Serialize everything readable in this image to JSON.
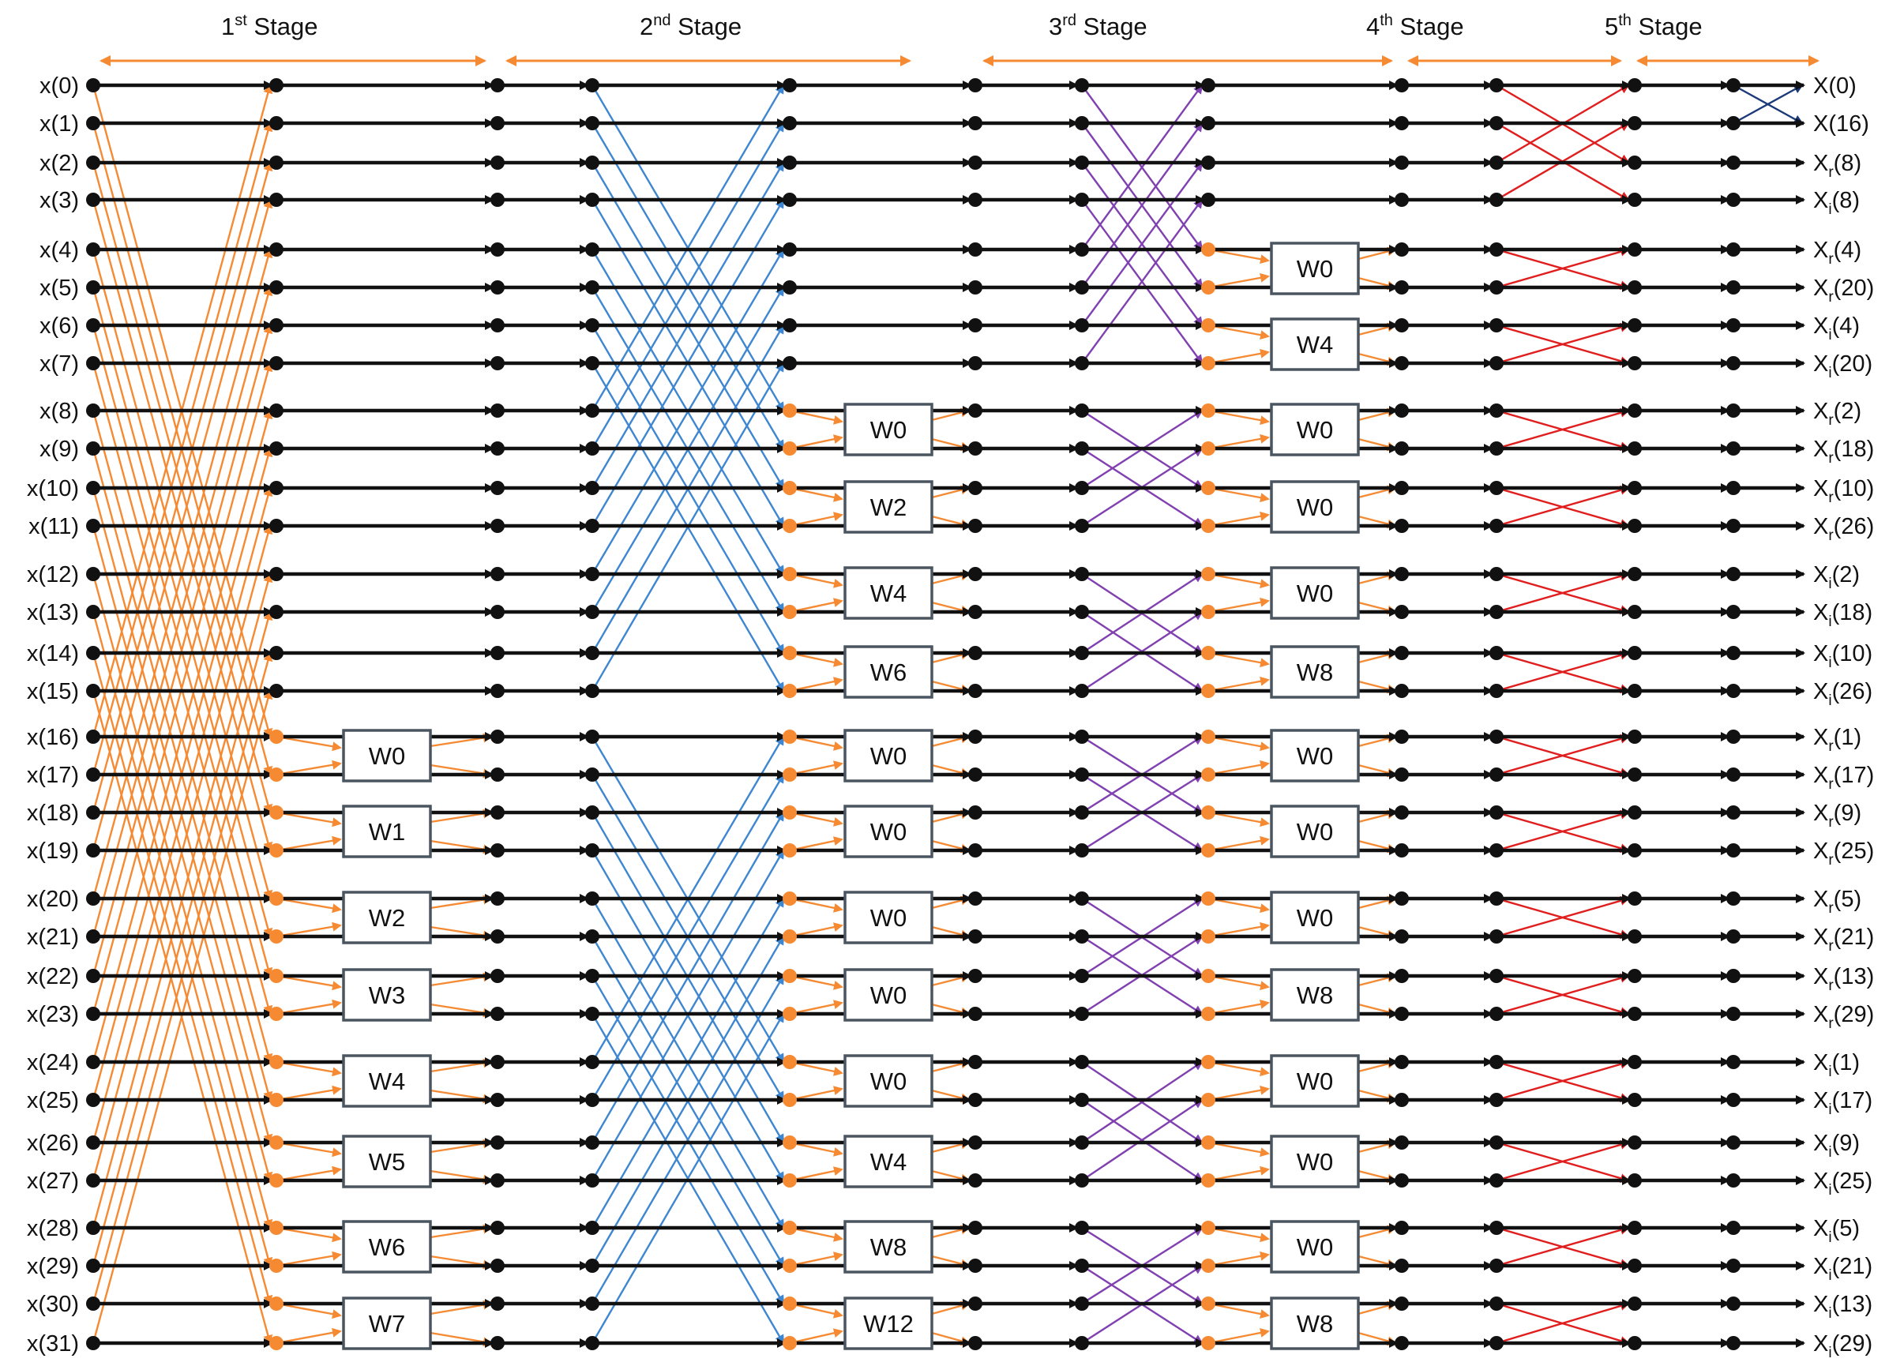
{
  "stages": [
    {
      "base": "1",
      "sup": "st",
      "word": "Stage"
    },
    {
      "base": "2",
      "sup": "nd",
      "word": "Stage"
    },
    {
      "base": "3",
      "sup": "rd",
      "word": "Stage"
    },
    {
      "base": "4",
      "sup": "th",
      "word": "Stage"
    },
    {
      "base": "5",
      "sup": "th",
      "word": "Stage"
    }
  ],
  "inputs": [
    "x(0)",
    "x(1)",
    "x(2)",
    "x(3)",
    "x(4)",
    "x(5)",
    "x(6)",
    "x(7)",
    "x(8)",
    "x(9)",
    "x(10)",
    "x(11)",
    "x(12)",
    "x(13)",
    "x(14)",
    "x(15)",
    "x(16)",
    "x(17)",
    "x(18)",
    "x(19)",
    "x(20)",
    "x(21)",
    "x(22)",
    "x(23)",
    "x(24)",
    "x(25)",
    "x(26)",
    "x(27)",
    "x(28)",
    "x(29)",
    "x(30)",
    "x(31)"
  ],
  "outputs": [
    {
      "base": "X",
      "sub": "",
      "idx": "(0)"
    },
    {
      "base": "X",
      "sub": "",
      "idx": "(16)"
    },
    {
      "base": "X",
      "sub": "r",
      "idx": "(8)"
    },
    {
      "base": "X",
      "sub": "i",
      "idx": "(8)"
    },
    {
      "base": "X",
      "sub": "r",
      "idx": "(4)"
    },
    {
      "base": "X",
      "sub": "r",
      "idx": "(20)"
    },
    {
      "base": "X",
      "sub": "i",
      "idx": "(4)"
    },
    {
      "base": "X",
      "sub": "i",
      "idx": "(20)"
    },
    {
      "base": "X",
      "sub": "r",
      "idx": "(2)"
    },
    {
      "base": "X",
      "sub": "r",
      "idx": "(18)"
    },
    {
      "base": "X",
      "sub": "r",
      "idx": "(10)"
    },
    {
      "base": "X",
      "sub": "r",
      "idx": "(26)"
    },
    {
      "base": "X",
      "sub": "i",
      "idx": "(2)"
    },
    {
      "base": "X",
      "sub": "i",
      "idx": "(18)"
    },
    {
      "base": "X",
      "sub": "i",
      "idx": "(10)"
    },
    {
      "base": "X",
      "sub": "i",
      "idx": "(26)"
    },
    {
      "base": "X",
      "sub": "r",
      "idx": "(1)"
    },
    {
      "base": "X",
      "sub": "r",
      "idx": "(17)"
    },
    {
      "base": "X",
      "sub": "r",
      "idx": "(9)"
    },
    {
      "base": "X",
      "sub": "r",
      "idx": "(25)"
    },
    {
      "base": "X",
      "sub": "r",
      "idx": "(5)"
    },
    {
      "base": "X",
      "sub": "r",
      "idx": "(21)"
    },
    {
      "base": "X",
      "sub": "r",
      "idx": "(13)"
    },
    {
      "base": "X",
      "sub": "r",
      "idx": "(29)"
    },
    {
      "base": "X",
      "sub": "i",
      "idx": "(1)"
    },
    {
      "base": "X",
      "sub": "i",
      "idx": "(17)"
    },
    {
      "base": "X",
      "sub": "i",
      "idx": "(9)"
    },
    {
      "base": "X",
      "sub": "i",
      "idx": "(25)"
    },
    {
      "base": "X",
      "sub": "i",
      "idx": "(5)"
    },
    {
      "base": "X",
      "sub": "i",
      "idx": "(21)"
    },
    {
      "base": "X",
      "sub": "i",
      "idx": "(13)"
    },
    {
      "base": "X",
      "sub": "i",
      "idx": "(29)"
    }
  ],
  "twiddles": {
    "stage1": [
      "W0",
      "W1",
      "W2",
      "W3",
      "W4",
      "W5",
      "W6",
      "W7"
    ],
    "stage2": [
      "W0",
      "W2",
      "W4",
      "W6",
      "W0",
      "W0",
      "W0",
      "W0",
      "W0",
      "W4",
      "W8",
      "W12"
    ],
    "stage3": [
      "W0",
      "W4",
      "W0",
      "W0",
      "W0",
      "W8",
      "W0",
      "W0",
      "W0",
      "W8",
      "W0",
      "W0",
      "W0",
      "W8"
    ]
  },
  "colors": {
    "main_lines": "#111111",
    "stage1_cross": "#F58A33",
    "stage2_cross": "#3E86D0",
    "stage3_cross": "#8040B0",
    "stage4_cross": "#E01E1E",
    "stage5_cross": "#1A3A7A",
    "twiddle_links": "#F58A33",
    "box_border": "#4A5560"
  }
}
